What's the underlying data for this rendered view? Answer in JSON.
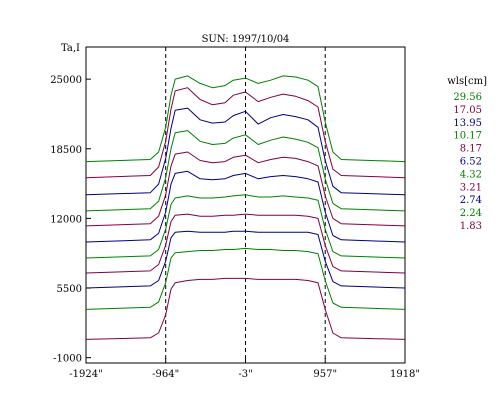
{
  "chart_data": {
    "type": "line",
    "title": "SUN: 1997/10/04",
    "ylabel": "Ta,I",
    "xlabel": "",
    "x_tick_labels": [
      "-1924\"",
      "-964\"",
      "-3\"",
      "957\"",
      "1918\""
    ],
    "x_ticks": [
      -1924,
      -964,
      -3,
      957,
      1918
    ],
    "xlim": [
      -1924,
      1918
    ],
    "y_ticks": [
      -1000,
      5500,
      12000,
      18500,
      25000
    ],
    "y_tick_labels": [
      "-1000",
      "5500",
      "12000",
      "18500",
      "25000"
    ],
    "ylim": [
      -1500,
      28000
    ],
    "dashed_vertical_lines_x": [
      -964,
      -3,
      957
    ],
    "legend_title": "wls[cm]",
    "legend_position": "right",
    "grid": false,
    "series": [
      {
        "name": "29.56",
        "color": "#008000",
        "baseline": 17300,
        "plateau": 24300,
        "x": [
          -1924,
          -1150,
          -1050,
          -964,
          -900,
          -850,
          -700,
          -550,
          -400,
          -250,
          -150,
          -3,
          150,
          300,
          450,
          600,
          750,
          870,
          957,
          1050,
          1150,
          1918
        ],
        "y": [
          17300,
          17500,
          18200,
          20500,
          23500,
          25000,
          25300,
          24600,
          24200,
          24400,
          24900,
          25100,
          24600,
          24900,
          25300,
          25200,
          24900,
          24300,
          21000,
          18200,
          17500,
          17300
        ]
      },
      {
        "name": "17.05",
        "color": "#800040",
        "baseline": 15800,
        "plateau": 22500,
        "x": [
          -1924,
          -1150,
          -1050,
          -964,
          -900,
          -850,
          -700,
          -550,
          -400,
          -250,
          -150,
          -3,
          150,
          300,
          450,
          600,
          750,
          870,
          957,
          1050,
          1150,
          1918
        ],
        "y": [
          15800,
          16000,
          16800,
          19200,
          22200,
          23900,
          24200,
          23100,
          22600,
          22800,
          23500,
          23800,
          22900,
          23300,
          23600,
          23400,
          23000,
          22400,
          19200,
          16600,
          16000,
          15800
        ]
      },
      {
        "name": "13.95",
        "color": "#000080",
        "baseline": 14200,
        "plateau": 20800,
        "x": [
          -1924,
          -1150,
          -1050,
          -964,
          -900,
          -850,
          -700,
          -550,
          -400,
          -250,
          -150,
          -3,
          150,
          300,
          450,
          600,
          750,
          870,
          957,
          1050,
          1150,
          1918
        ],
        "y": [
          14200,
          14400,
          15200,
          17600,
          20400,
          22100,
          22300,
          21200,
          20900,
          21000,
          21600,
          22000,
          20800,
          21400,
          21700,
          21500,
          21200,
          20500,
          17400,
          15000,
          14400,
          14200
        ]
      },
      {
        "name": "10.17",
        "color": "#008000",
        "baseline": 12700,
        "plateau": 19000,
        "x": [
          -1924,
          -1150,
          -1050,
          -964,
          -900,
          -850,
          -700,
          -550,
          -400,
          -250,
          -150,
          -3,
          150,
          300,
          450,
          600,
          750,
          870,
          957,
          1050,
          1150,
          1918
        ],
        "y": [
          12700,
          12900,
          13600,
          15800,
          18500,
          20000,
          20200,
          19200,
          18900,
          19000,
          19500,
          19800,
          18900,
          19300,
          19600,
          19400,
          19100,
          18600,
          15700,
          13400,
          12900,
          12700
        ]
      },
      {
        "name": "8.17",
        "color": "#800040",
        "baseline": 11300,
        "plateau": 17300,
        "x": [
          -1924,
          -1150,
          -1050,
          -964,
          -900,
          -850,
          -700,
          -550,
          -400,
          -250,
          -150,
          -3,
          150,
          300,
          450,
          600,
          750,
          870,
          957,
          1050,
          1150,
          1918
        ],
        "y": [
          11300,
          11500,
          12200,
          14200,
          16900,
          18000,
          18200,
          17400,
          17200,
          17300,
          17700,
          17900,
          17200,
          17500,
          17700,
          17600,
          17300,
          16900,
          14100,
          12000,
          11500,
          11300
        ]
      },
      {
        "name": "6.52",
        "color": "#000080",
        "baseline": 9800,
        "plateau": 15700,
        "x": [
          -1924,
          -1150,
          -1050,
          -964,
          -900,
          -850,
          -700,
          -550,
          -400,
          -250,
          -150,
          -3,
          150,
          300,
          450,
          600,
          750,
          870,
          957,
          1050,
          1150,
          1918
        ],
        "y": [
          9800,
          10000,
          10600,
          12600,
          15200,
          16200,
          16400,
          15700,
          15600,
          15700,
          16000,
          16200,
          15700,
          15900,
          16000,
          15900,
          15700,
          15400,
          12600,
          10400,
          10000,
          9800
        ]
      },
      {
        "name": "4.32",
        "color": "#008000",
        "baseline": 8300,
        "plateau": 13900,
        "x": [
          -1924,
          -1150,
          -1050,
          -964,
          -900,
          -850,
          -700,
          -550,
          -400,
          -250,
          -150,
          -3,
          150,
          300,
          450,
          600,
          750,
          870,
          957,
          1050,
          1150,
          1918
        ],
        "y": [
          8300,
          8500,
          9100,
          11000,
          13300,
          13900,
          14100,
          13900,
          13900,
          14000,
          14100,
          14200,
          14000,
          14000,
          14100,
          14000,
          13900,
          13700,
          11000,
          8900,
          8500,
          8300
        ]
      },
      {
        "name": "3.21",
        "color": "#800040",
        "baseline": 6900,
        "plateau": 12200,
        "x": [
          -1924,
          -1150,
          -1050,
          -964,
          -900,
          -850,
          -700,
          -550,
          -400,
          -250,
          -150,
          -3,
          150,
          300,
          450,
          600,
          750,
          870,
          957,
          1050,
          1150,
          1918
        ],
        "y": [
          6900,
          7100,
          7700,
          9500,
          11700,
          12300,
          12400,
          12200,
          12200,
          12300,
          12300,
          12400,
          12300,
          12300,
          12300,
          12300,
          12200,
          12000,
          9500,
          7500,
          7100,
          6900
        ]
      },
      {
        "name": "2.74",
        "color": "#000080",
        "baseline": 5500,
        "plateau": 10700,
        "x": [
          -1924,
          -1150,
          -1050,
          -964,
          -900,
          -850,
          -700,
          -550,
          -400,
          -250,
          -150,
          -3,
          150,
          300,
          450,
          600,
          750,
          870,
          957,
          1050,
          1150,
          1918
        ],
        "y": [
          5500,
          5700,
          6200,
          8000,
          10200,
          10700,
          10800,
          10700,
          10700,
          10700,
          10800,
          10800,
          10700,
          10700,
          10700,
          10700,
          10700,
          10500,
          8000,
          6100,
          5700,
          5500
        ]
      },
      {
        "name": "2.24",
        "color": "#008000",
        "baseline": 3500,
        "plateau": 8900,
        "x": [
          -1924,
          -1150,
          -1050,
          -964,
          -900,
          -850,
          -700,
          -550,
          -400,
          -250,
          -150,
          -3,
          150,
          300,
          450,
          600,
          750,
          870,
          957,
          1050,
          1150,
          1918
        ],
        "y": [
          3500,
          3700,
          4200,
          6000,
          8300,
          8800,
          8900,
          9000,
          9000,
          9100,
          9100,
          9200,
          9100,
          9100,
          9000,
          9000,
          8900,
          8700,
          6200,
          4100,
          3700,
          3500
        ]
      },
      {
        "name": "1.83",
        "color": "#800040",
        "baseline": 700,
        "plateau": 6300,
        "x": [
          -1924,
          -1150,
          -1050,
          -964,
          -900,
          -850,
          -700,
          -550,
          -400,
          -250,
          -150,
          -3,
          150,
          300,
          450,
          600,
          750,
          870,
          957,
          1050,
          1150,
          1918
        ],
        "y": [
          700,
          850,
          1300,
          3000,
          5400,
          6000,
          6200,
          6300,
          6300,
          6400,
          6400,
          6400,
          6300,
          6300,
          6300,
          6300,
          6200,
          6000,
          3500,
          1300,
          850,
          700
        ]
      }
    ]
  }
}
